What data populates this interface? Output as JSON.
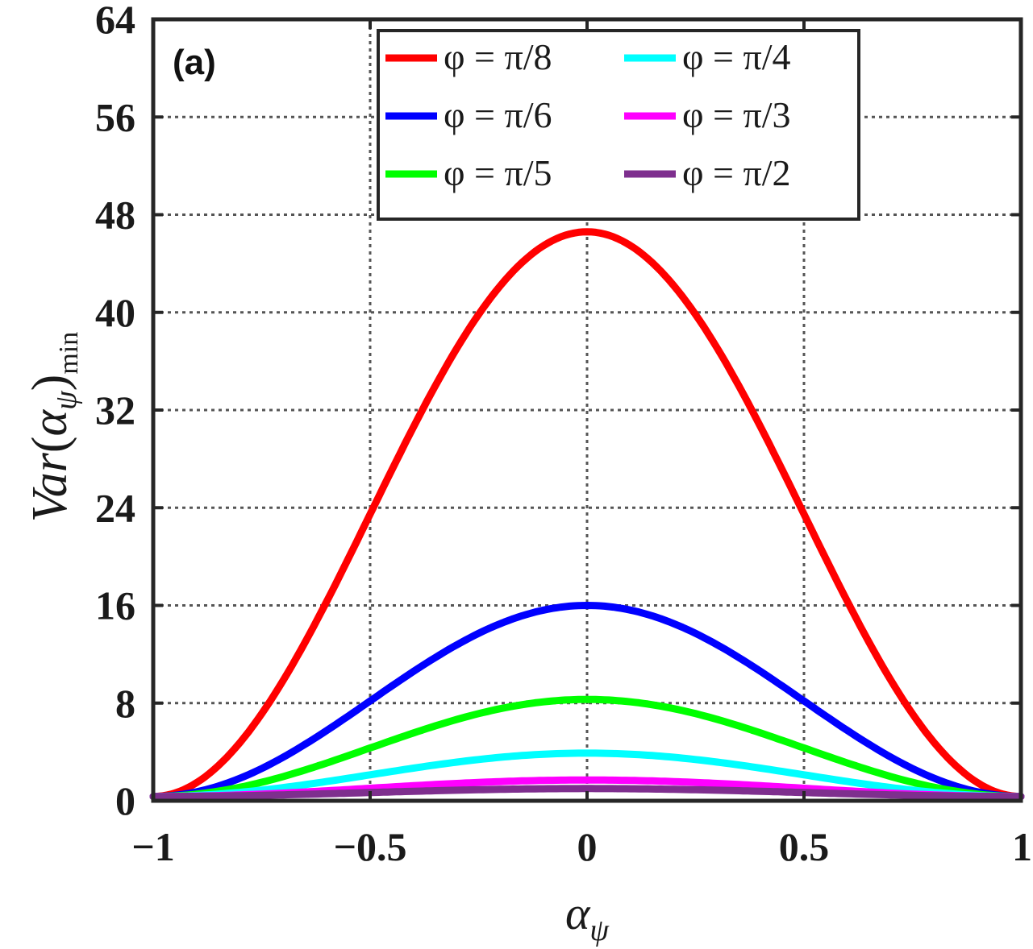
{
  "chart_data": {
    "type": "line",
    "panel_label": "(a)",
    "xlabel": {
      "main": "α",
      "sub": "ψ"
    },
    "ylabel": {
      "prefix": "Var",
      "paren_open": "(",
      "alpha": "α",
      "alpha_sub": "ψ",
      "paren_close": ")",
      "sub": "min"
    },
    "xlim": [
      -1,
      1
    ],
    "ylim": [
      0,
      64
    ],
    "xticks": [
      -1,
      -0.5,
      0,
      0.5,
      1
    ],
    "xtick_labels": [
      "−1",
      "−0.5",
      "0",
      "0.5",
      "1"
    ],
    "yticks": [
      0,
      8,
      16,
      24,
      32,
      40,
      48,
      56,
      64
    ],
    "ytick_labels": [
      "0",
      "8",
      "16",
      "24",
      "32",
      "40",
      "48",
      "56",
      "64"
    ],
    "grid": true,
    "legend_position": "top-right",
    "x": [
      -1,
      -0.8,
      -0.6,
      -0.4,
      -0.2,
      0,
      0.2,
      0.4,
      0.6,
      0.8,
      1
    ],
    "series": [
      {
        "name": "φ = π/8",
        "color": "#ff0000",
        "peak": 46.6,
        "end": 0.35,
        "values": [
          0.35,
          8.5,
          19.5,
          31.2,
          41.0,
          46.6,
          41.0,
          31.2,
          19.5,
          8.5,
          0.35
        ]
      },
      {
        "name": "φ = π/6",
        "color": "#0000ff",
        "peak": 16.0,
        "end": 0.35,
        "values": [
          0.35,
          3.9,
          7.9,
          11.7,
          14.8,
          16.0,
          14.8,
          11.7,
          7.9,
          3.9,
          0.35
        ]
      },
      {
        "name": "φ = π/5",
        "color": "#00ff00",
        "peak": 8.3,
        "end": 0.35,
        "values": [
          0.35,
          2.4,
          4.6,
          6.5,
          7.8,
          8.3,
          7.8,
          6.5,
          4.6,
          2.4,
          0.35
        ]
      },
      {
        "name": "φ = π/4",
        "color": "#00ffff",
        "peak": 3.9,
        "end": 0.35,
        "values": [
          0.35,
          1.3,
          2.3,
          3.1,
          3.7,
          3.9,
          3.7,
          3.1,
          2.3,
          1.3,
          0.35
        ]
      },
      {
        "name": "φ = π/3",
        "color": "#ff00ff",
        "peak": 1.7,
        "end": 0.35,
        "values": [
          0.35,
          0.75,
          1.15,
          1.45,
          1.65,
          1.7,
          1.65,
          1.45,
          1.15,
          0.75,
          0.35
        ]
      },
      {
        "name": "φ = π/2",
        "color": "#7e2f8e",
        "peak": 1.0,
        "end": 0.35,
        "values": [
          0.35,
          0.55,
          0.75,
          0.9,
          0.97,
          1.0,
          0.97,
          0.9,
          0.75,
          0.55,
          0.35
        ]
      }
    ]
  }
}
